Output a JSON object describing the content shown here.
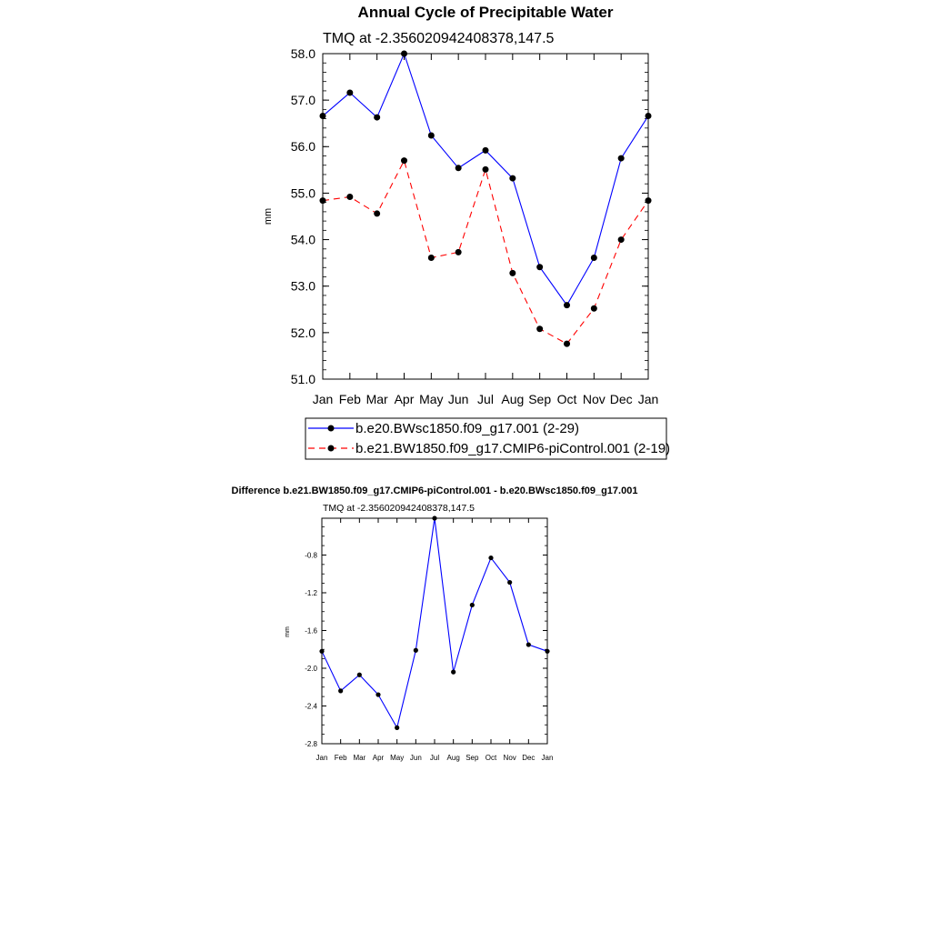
{
  "page_title": "Annual Cycle of Precipitable Water",
  "chart_data": [
    {
      "type": "line",
      "title": "Annual Cycle of Precipitable Water",
      "subtitle": "TMQ at -2.356020942408378,147.5",
      "xlabel": "",
      "ylabel": "mm",
      "categories": [
        "Jan",
        "Feb",
        "Mar",
        "Apr",
        "May",
        "Jun",
        "Jul",
        "Aug",
        "Sep",
        "Oct",
        "Nov",
        "Dec",
        "Jan"
      ],
      "ylim": [
        51.0,
        58.0
      ],
      "yticks": [
        "51.0",
        "52.0",
        "53.0",
        "54.0",
        "55.0",
        "56.0",
        "57.0",
        "58.0"
      ],
      "grid": false,
      "legend_position": "bottom",
      "series": [
        {
          "name": "b.e20.BWsc1850.f09_g17.001 (2-29)",
          "color": "#0000ff",
          "dash": "solid",
          "values": [
            56.66,
            57.16,
            56.63,
            58.0,
            56.24,
            55.54,
            55.92,
            55.32,
            53.41,
            52.59,
            53.61,
            55.75,
            56.66
          ]
        },
        {
          "name": "b.e21.BW1850.f09_g17.CMIP6-piControl.001 (2-19)",
          "color": "#ff0000",
          "dash": "dashed",
          "values": [
            54.84,
            54.92,
            54.56,
            55.7,
            53.61,
            53.73,
            55.51,
            53.28,
            52.08,
            51.76,
            52.52,
            54.0,
            54.84
          ]
        }
      ]
    },
    {
      "type": "line",
      "title": "Difference b.e21.BW1850.f09_g17.CMIP6-piControl.001 - b.e20.BWsc1850.f09_g17.001",
      "subtitle": "TMQ at -2.356020942408378,147.5",
      "xlabel": "",
      "ylabel": "mm",
      "categories": [
        "Jan",
        "Feb",
        "Mar",
        "Apr",
        "May",
        "Jun",
        "Jul",
        "Aug",
        "Sep",
        "Oct",
        "Nov",
        "Dec",
        "Jan"
      ],
      "ylim": [
        -2.8,
        -0.41
      ],
      "yticks": [
        "-2.8",
        "-2.4",
        "-2.0",
        "-1.6",
        "-1.2",
        "-0.8"
      ],
      "grid": false,
      "series": [
        {
          "name": "Difference",
          "color": "#0000ff",
          "dash": "solid",
          "values": [
            -1.82,
            -2.24,
            -2.07,
            -2.28,
            -2.63,
            -1.81,
            -0.41,
            -2.04,
            -1.33,
            -0.83,
            -1.09,
            -1.75,
            -1.82
          ]
        }
      ]
    }
  ]
}
